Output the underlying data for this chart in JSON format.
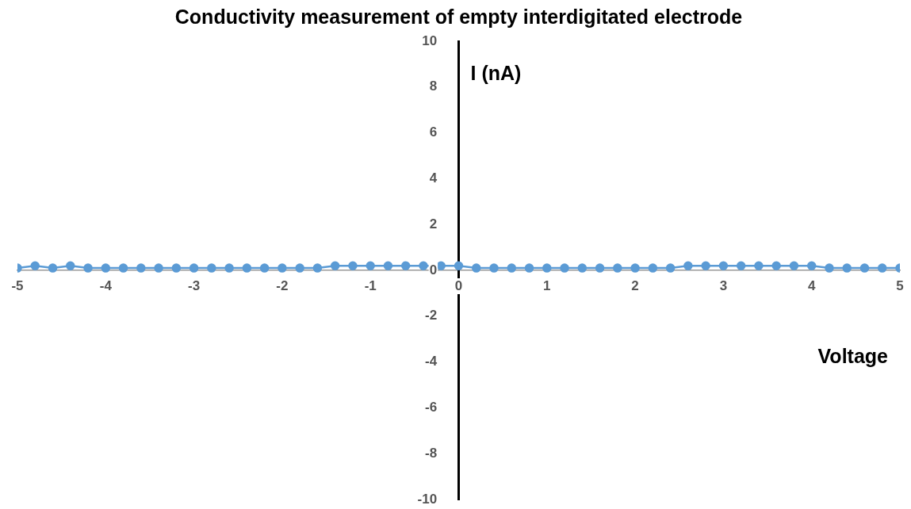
{
  "chart_data": {
    "type": "line",
    "title": "Conductivity measurement of empty interdigitated electrode",
    "xlabel": "Voltage",
    "ylabel": "I (nA)",
    "x": [
      -5,
      -4.8,
      -4.6,
      -4.4,
      -4.2,
      -4,
      -3.8,
      -3.6,
      -3.4,
      -3.2,
      -3,
      -2.8,
      -2.6,
      -2.4,
      -2.2,
      -2,
      -1.8,
      -1.6,
      -1.4,
      -1.2,
      -1,
      -0.8,
      -0.6,
      -0.4,
      -0.2,
      0,
      0.2,
      0.4,
      0.6,
      0.8,
      1,
      1.2,
      1.4,
      1.6,
      1.8,
      2,
      2.2,
      2.4,
      2.6,
      2.8,
      3,
      3.2,
      3.4,
      3.6,
      3.8,
      4,
      4.2,
      4.4,
      4.6,
      4.8,
      5
    ],
    "series": [
      {
        "color": "#5b9bd5",
        "values": [
          0.1,
          0.2,
          0.1,
          0.2,
          0.1,
          0.1,
          0.1,
          0.1,
          0.1,
          0.1,
          0.1,
          0.1,
          0.1,
          0.1,
          0.1,
          0.1,
          0.1,
          0.1,
          0.2,
          0.2,
          0.2,
          0.2,
          0.2,
          0.2,
          0.2,
          0.2,
          0.1,
          0.1,
          0.1,
          0.1,
          0.1,
          0.1,
          0.1,
          0.1,
          0.1,
          0.1,
          0.1,
          0.1,
          0.2,
          0.2,
          0.2,
          0.2,
          0.2,
          0.2,
          0.2,
          0.2,
          0.1,
          0.1,
          0.1,
          0.1,
          0.1
        ]
      }
    ],
    "xlim": [
      -5,
      5
    ],
    "xticks": [
      -5,
      -4,
      -3,
      -2,
      -1,
      0,
      1,
      2,
      3,
      4,
      5
    ],
    "ylim": [
      -10,
      10
    ],
    "yticks": [
      -10,
      -8,
      -6,
      -4,
      -2,
      0,
      2,
      4,
      6,
      8,
      10
    ],
    "grid": false,
    "legend": false,
    "marker": "circle",
    "line_style": "solid"
  }
}
